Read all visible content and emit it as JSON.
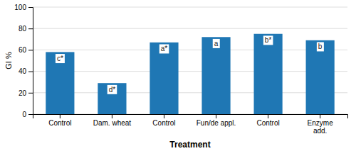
{
  "chart_data": {
    "type": "bar",
    "categories": [
      "Control",
      "Dam. wheat",
      "Control",
      "Fun/de appl.",
      "Control",
      "Enzyme\nadd."
    ],
    "values": [
      58,
      29,
      67,
      72,
      75,
      69
    ],
    "annotations": [
      "c*",
      "d*",
      "a*",
      "a",
      "b*",
      "b"
    ],
    "ylabel": "GI %",
    "xlabel": "Treatment",
    "ylim": [
      0,
      100
    ],
    "yticks": [
      0,
      20,
      40,
      60,
      80,
      100
    ],
    "grid": true
  }
}
